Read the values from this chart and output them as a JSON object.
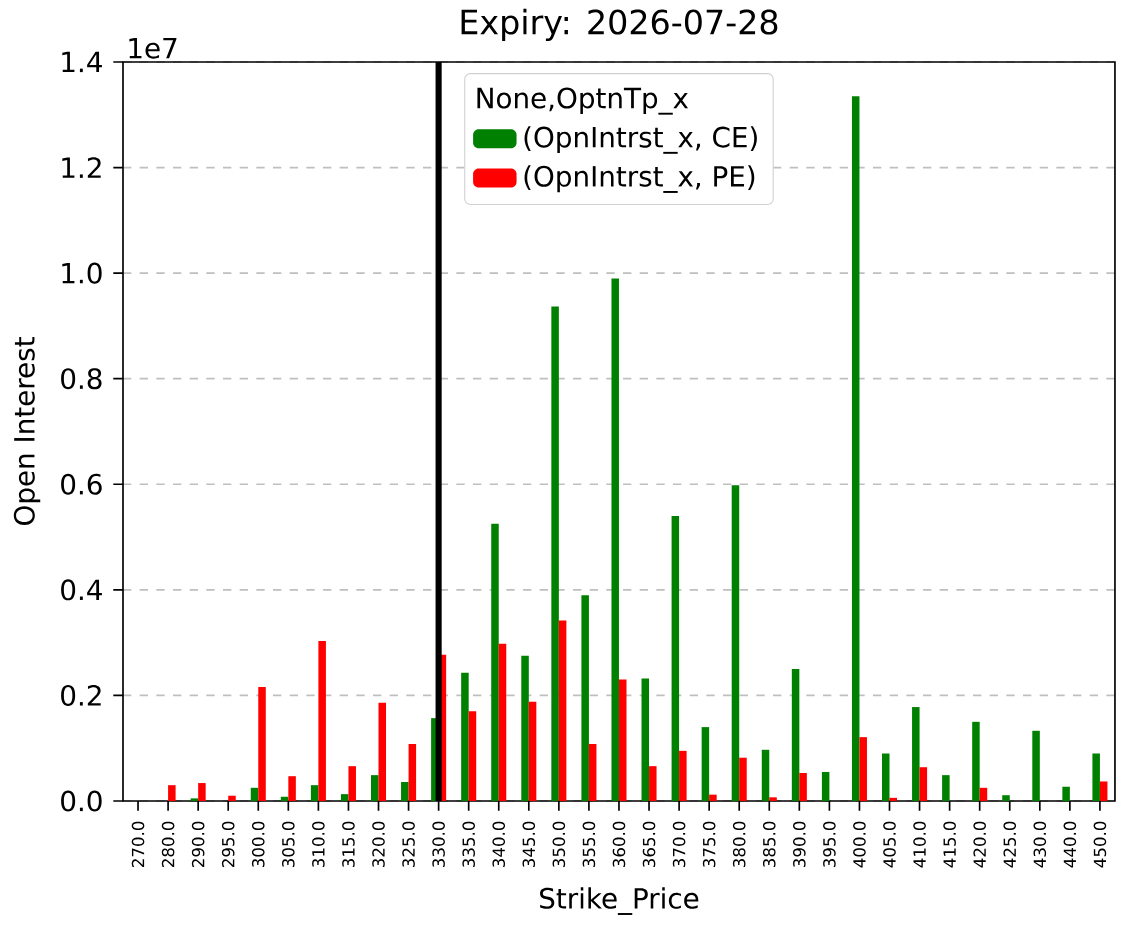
{
  "chart_data": {
    "type": "bar",
    "title": "Expiry: 2026-07-28",
    "xlabel": "Strike_Price",
    "ylabel": "Open Interest",
    "categories": [
      "270.0",
      "280.0",
      "290.0",
      "295.0",
      "300.0",
      "305.0",
      "310.0",
      "315.0",
      "320.0",
      "325.0",
      "330.0",
      "335.0",
      "340.0",
      "345.0",
      "350.0",
      "355.0",
      "360.0",
      "365.0",
      "370.0",
      "375.0",
      "380.0",
      "385.0",
      "390.0",
      "395.0",
      "400.0",
      "405.0",
      "410.0",
      "415.0",
      "420.0",
      "425.0",
      "430.0",
      "440.0",
      "450.0"
    ],
    "series": [
      {
        "name": "(OpnIntrst_x, CE)",
        "color": "#008000",
        "values": [
          0,
          0,
          0.005,
          0,
          0.025,
          0.008,
          0.03,
          0.013,
          0.049,
          0.036,
          0.157,
          0.243,
          0.525,
          0.275,
          0.937,
          0.39,
          0.99,
          0.232,
          0.54,
          0.14,
          0.598,
          0.097,
          0.25,
          0.055,
          1.335,
          0.09,
          0.178,
          0.049,
          0.15,
          0.011,
          0.133,
          0.027,
          0.09
        ]
      },
      {
        "name": "(OpnIntrst_x, PE)",
        "color": "#ff0000",
        "values": [
          0,
          0.03,
          0.034,
          0.01,
          0.216,
          0.047,
          0.303,
          0.066,
          0.186,
          0.108,
          0.277,
          0.17,
          0.298,
          0.188,
          0.342,
          0.108,
          0.23,
          0.066,
          0.095,
          0.012,
          0.082,
          0.007,
          0.053,
          0,
          0.121,
          0.006,
          0.064,
          0,
          0.025,
          0,
          0,
          0,
          0.037
        ]
      }
    ],
    "legend_title": "None,OptnTp_x",
    "legend": "top",
    "ylim": [
      0,
      1.4
    ],
    "yticks": [
      {
        "value": 0,
        "label": "0.0"
      },
      {
        "value": 0.2,
        "label": "0.2"
      },
      {
        "value": 0.4,
        "label": "0.4"
      },
      {
        "value": 0.6,
        "label": "0.6"
      },
      {
        "value": 0.8,
        "label": "0.8"
      },
      {
        "value": 1.0,
        "label": "1.0"
      },
      {
        "value": 1.2,
        "label": "1.2"
      },
      {
        "value": 1.4,
        "label": "1.4"
      }
    ],
    "grid": "y",
    "ref_lines": [
      {
        "axis": "x",
        "value": "330.0",
        "color": "#000000"
      }
    ],
    "annotations": [
      "1e7"
    ]
  }
}
